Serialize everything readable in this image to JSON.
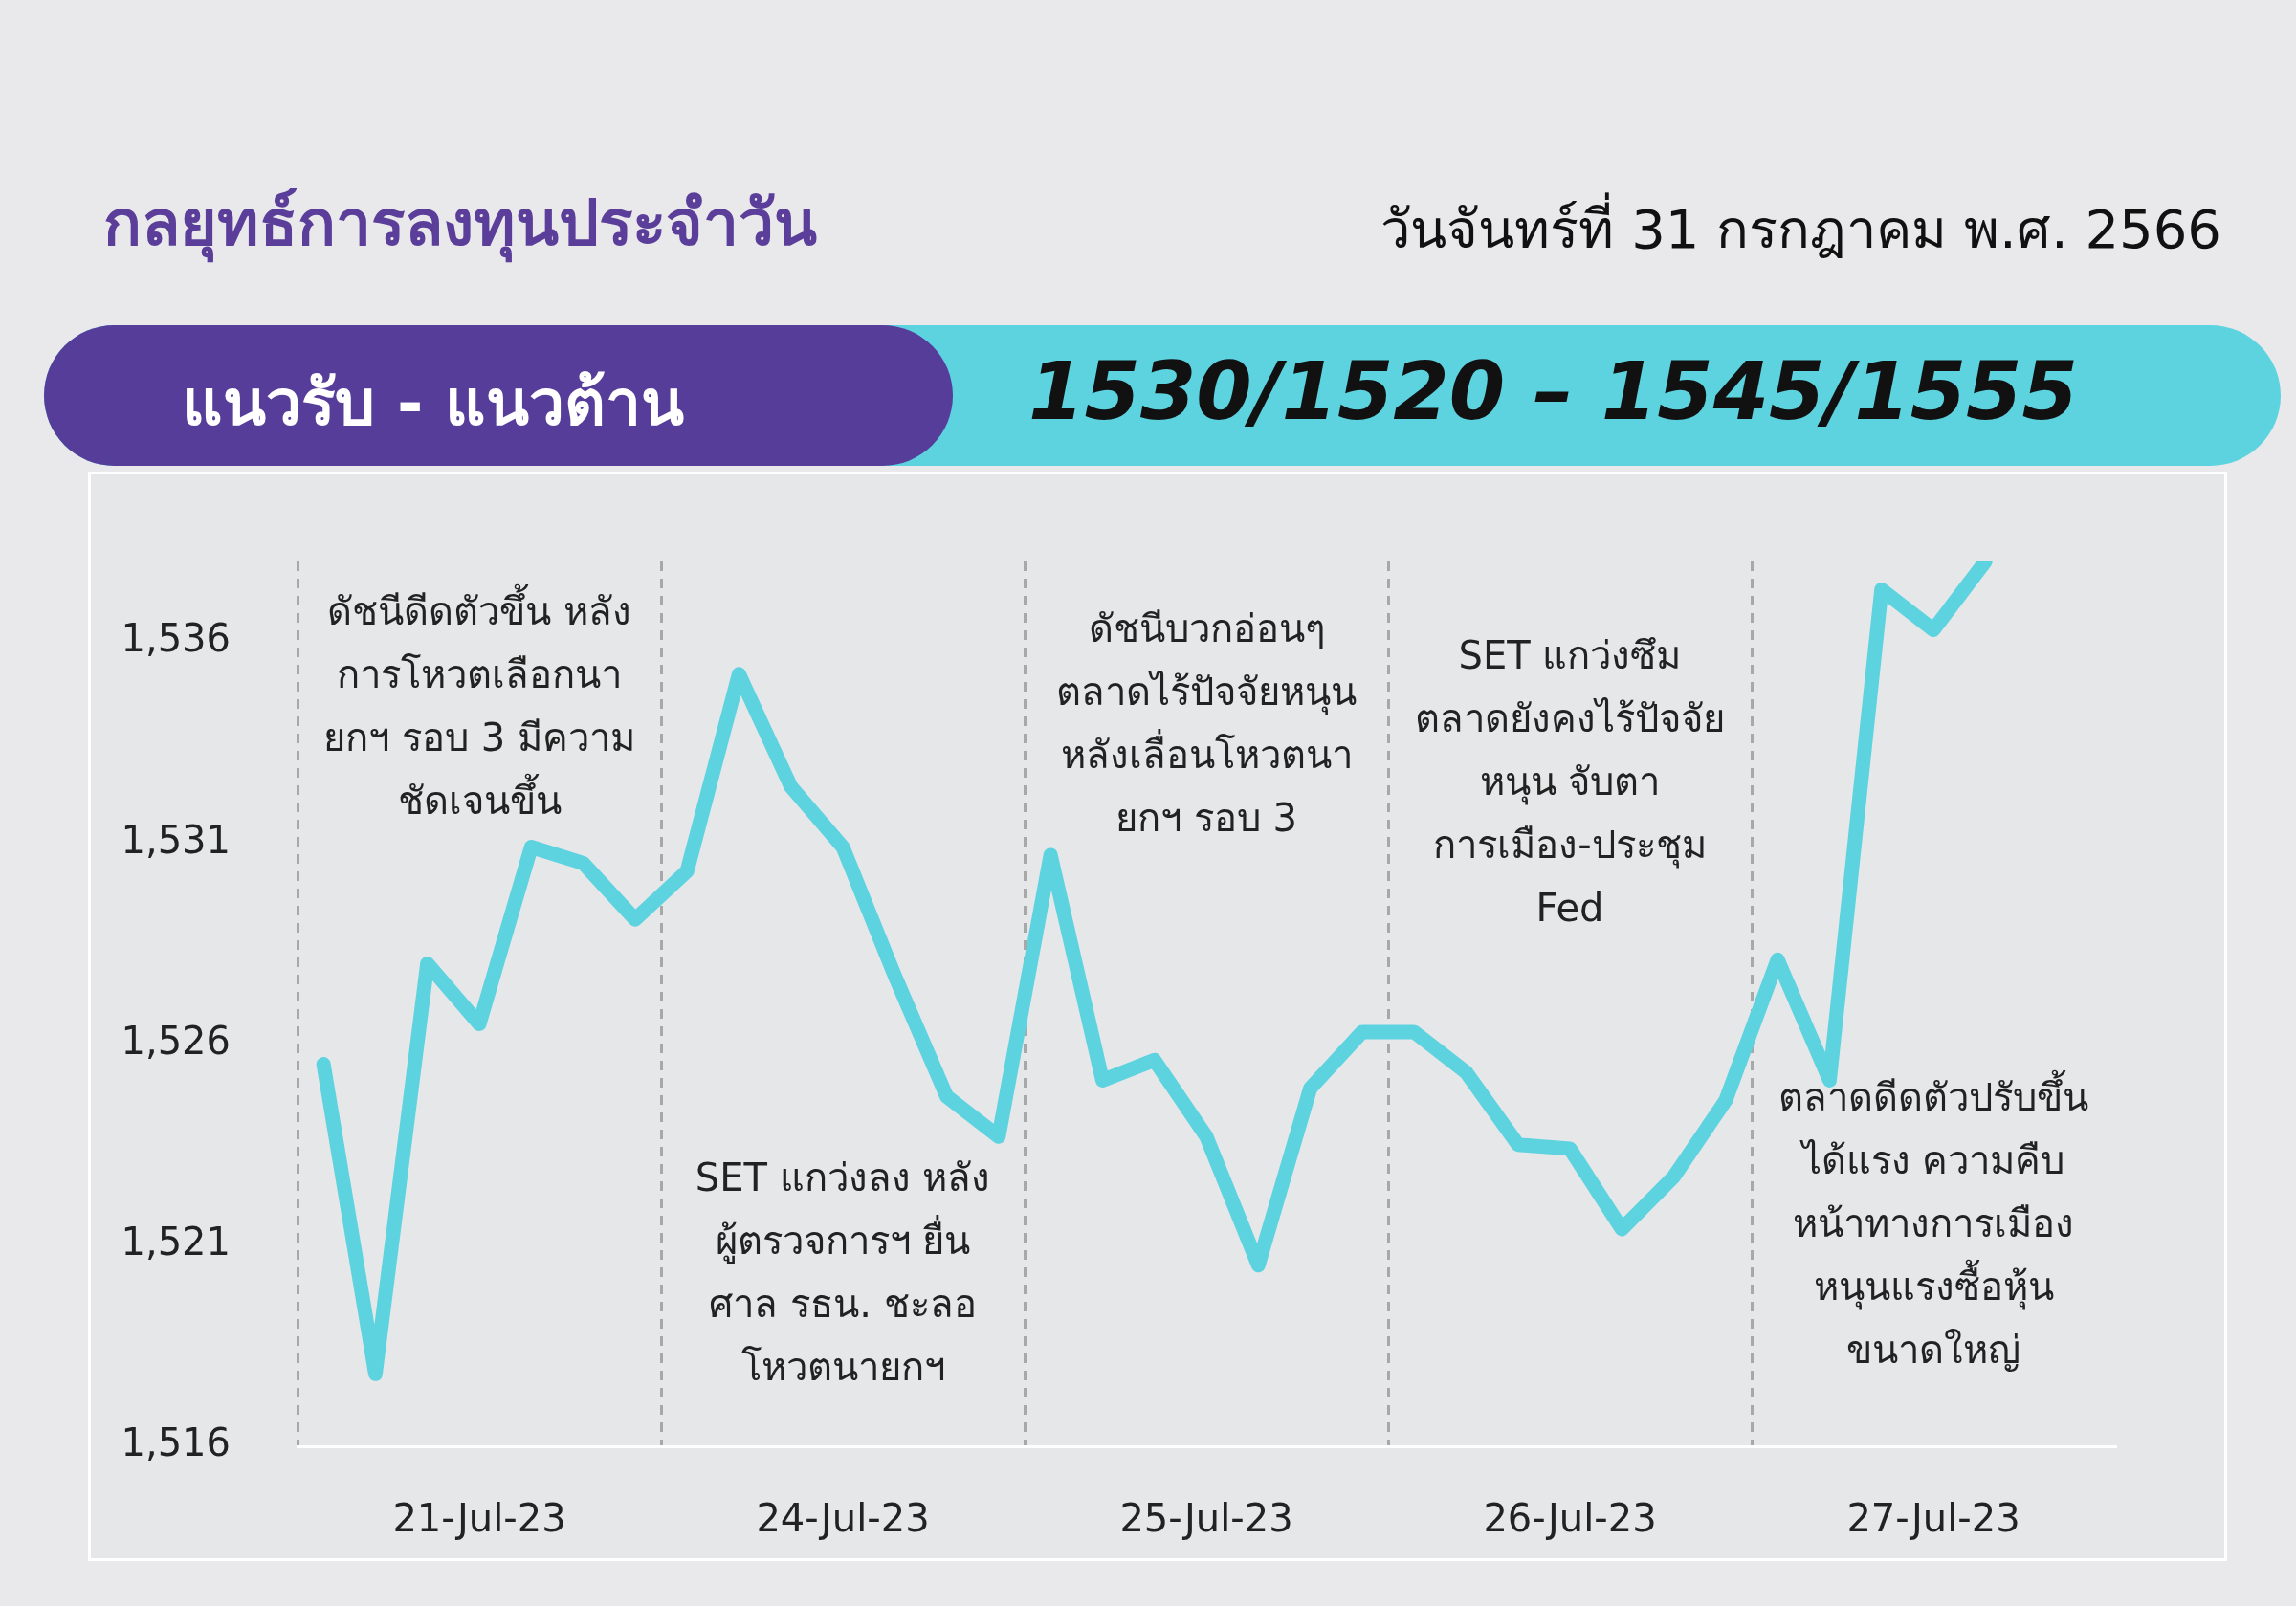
{
  "chart_data": {
    "type": "line",
    "title": "กลยุทธ์การลงทุนประจำวัน",
    "subtitle": "วันจันทร์ที่ 31 กรกฎาคม พ.ศ. 2566",
    "categories": [
      null,
      null,
      null,
      "21-Jul-23",
      null,
      null,
      null,
      null,
      null,
      null,
      "24-Jul-23",
      null,
      null,
      null,
      null,
      null,
      null,
      "25-Jul-23",
      null,
      null,
      null,
      null,
      null,
      null,
      "26-Jul-23",
      null,
      null,
      null,
      null,
      null,
      null,
      "27-Jul-23",
      null,
      null,
      null
    ],
    "series": [
      {
        "color": "#5dd3e0",
        "values": [
          1525.5,
          1517.8,
          1528.0,
          1526.5,
          1530.9,
          1530.5,
          1529.1,
          1530.3,
          1535.2,
          1532.4,
          1530.9,
          1527.7,
          1524.7,
          1523.7,
          1530.7,
          1525.1,
          1525.6,
          1523.7,
          1520.5,
          1524.9,
          1526.3,
          1526.3,
          1525.3,
          1523.5,
          1523.4,
          1521.4,
          1522.7,
          1524.6,
          1528.1,
          1525.1,
          1537.3,
          1536.3,
          1538,
          null,
          null
        ]
      }
    ],
    "ylim": [
      1516,
      1538
    ],
    "yticks": [
      {
        "value": 1516,
        "label": "1,516"
      },
      {
        "value": 1521,
        "label": "1,521"
      },
      {
        "value": 1526,
        "label": "1,526"
      },
      {
        "value": 1531,
        "label": "1,531"
      },
      {
        "value": 1536,
        "label": "1,536"
      }
    ],
    "grid": "x",
    "legend": false,
    "marker": "none",
    "line_style": "solid",
    "annotations": [
      "ดัชนีดีดตัวขึ้น หลังการโหวตเลือกนายกฯ รอบ 3 มีความชัดเจนขึ้น",
      "SET แกว่งลง หลังผู้ตรวจการฯ ยื่นศาล รธน. ชะลอโหวตนายกฯ",
      "ดัชนีบวกอ่อนๆ ตลาดไร้ปัจจัยหนุน หลังเลื่อนโหวตนายกฯ รอบ 3",
      "SET แกว่งซึม ตลาดยังคงไร้ปัจจัยหนุน จับตาการเมือง-ประชุม Fed",
      "ตลาดดีดตัวปรับขึ้นได้แรง ความคืบหน้าทางการเมือง หนุนแรงซื้อหุ้นขนาดใหญ่",
      "แนวรับ - แนวต้าน",
      "1530/1520 – 1545/1555"
    ]
  }
}
